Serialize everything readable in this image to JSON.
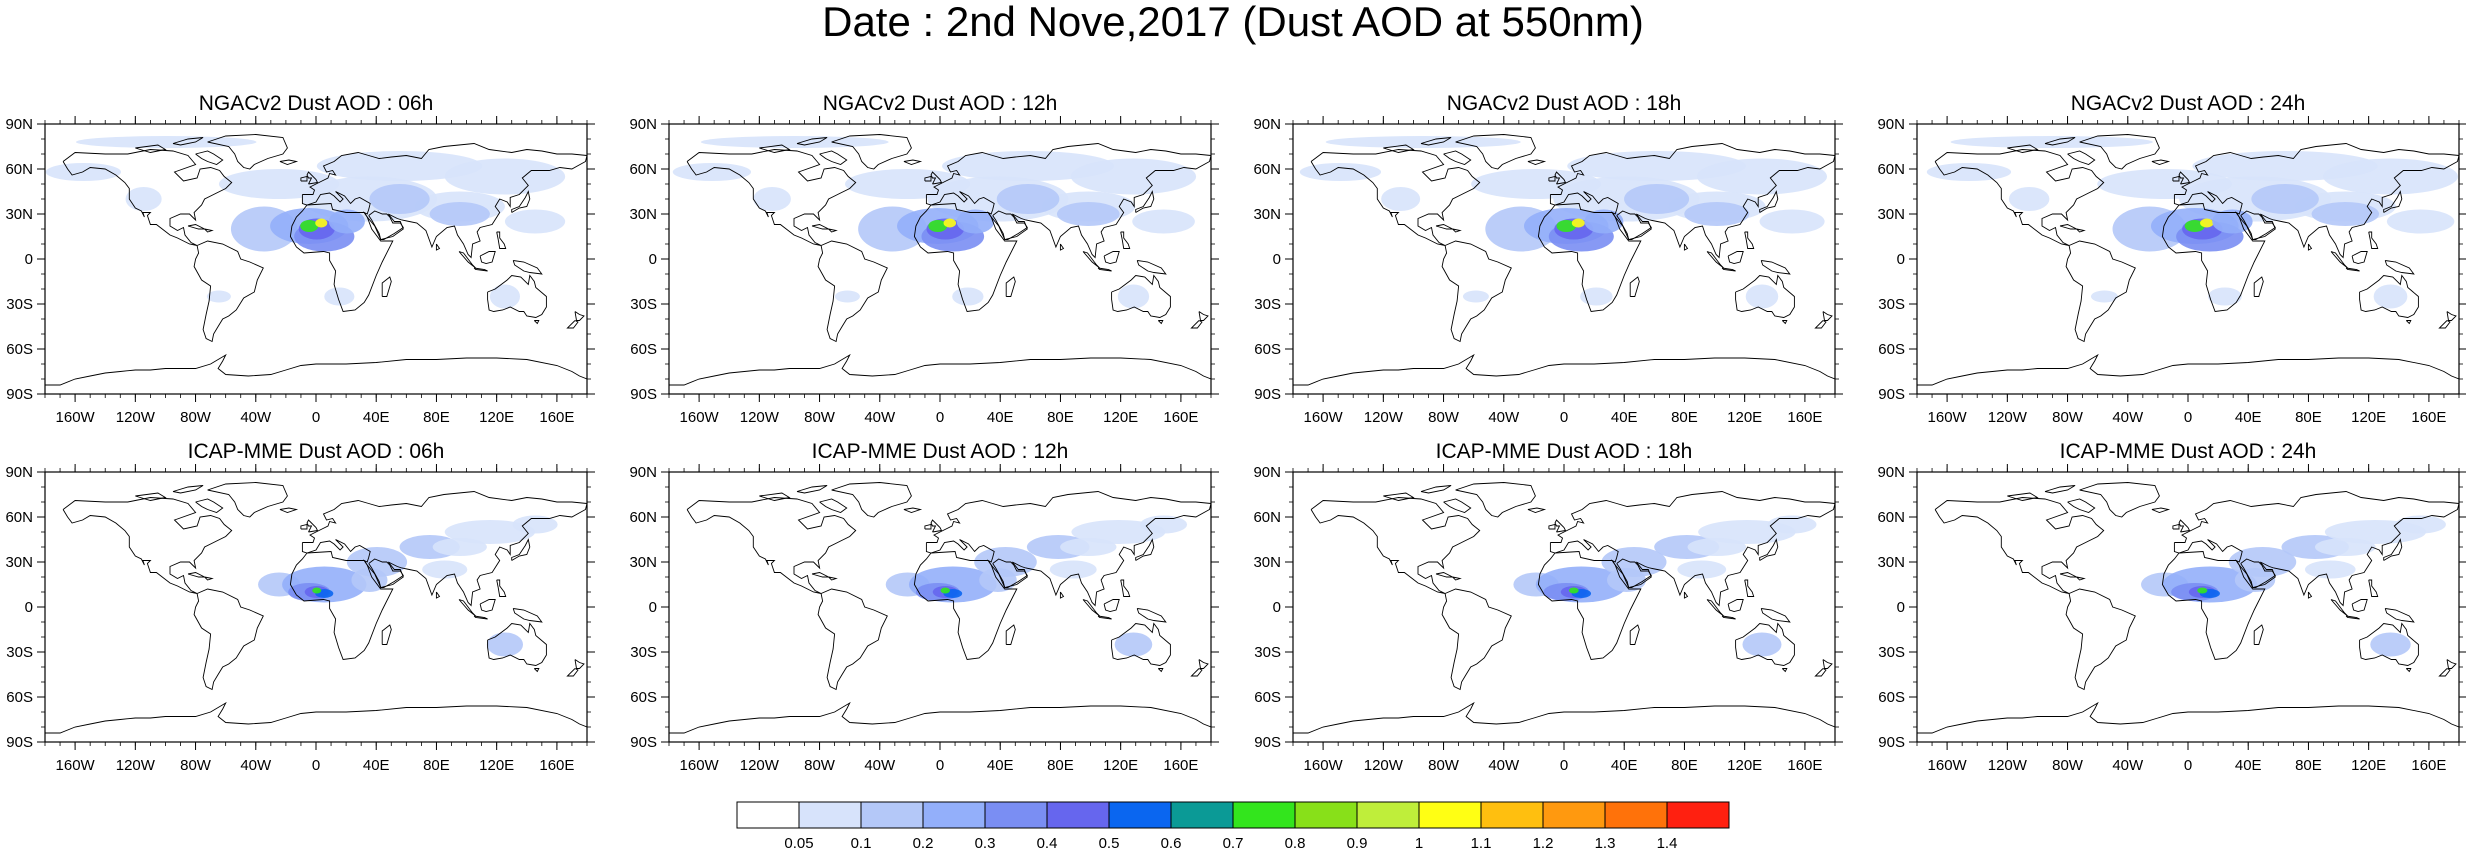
{
  "title": "Date : 2nd Nove,2017 (Dust AOD at 550nm)",
  "panels": [
    {
      "title": "NGACv2 Dust AOD : 06h"
    },
    {
      "title": "NGACv2 Dust AOD : 12h"
    },
    {
      "title": "NGACv2 Dust AOD : 18h"
    },
    {
      "title": "NGACv2 Dust AOD : 24h"
    },
    {
      "title": "ICAP-MME Dust AOD : 06h"
    },
    {
      "title": "ICAP-MME Dust AOD : 12h"
    },
    {
      "title": "ICAP-MME Dust AOD : 18h"
    },
    {
      "title": "ICAP-MME Dust AOD : 24h"
    }
  ],
  "axes": {
    "lat_ticks": [
      "90N",
      "60N",
      "30N",
      "0",
      "30S",
      "60S",
      "90S"
    ],
    "lon_ticks": [
      "160W",
      "120W",
      "80W",
      "40W",
      "0",
      "40E",
      "80E",
      "120E",
      "160E"
    ]
  },
  "colorbar": {
    "labels": [
      "0.05",
      "0.1",
      "0.2",
      "0.3",
      "0.4",
      "0.5",
      "0.6",
      "0.7",
      "0.8",
      "0.9",
      "1",
      "1.1",
      "1.2",
      "1.3",
      "1.4"
    ],
    "colors": [
      "#ffffff",
      "#d7e3fb",
      "#b4c8f8",
      "#93affa",
      "#7a8ef3",
      "#6666ee",
      "#0a66f0",
      "#0b9a96",
      "#33e51d",
      "#88e019",
      "#bfee3a",
      "#ffff14",
      "#ffbf0f",
      "#ff990f",
      "#ff720a",
      "#ff2010"
    ]
  }
}
